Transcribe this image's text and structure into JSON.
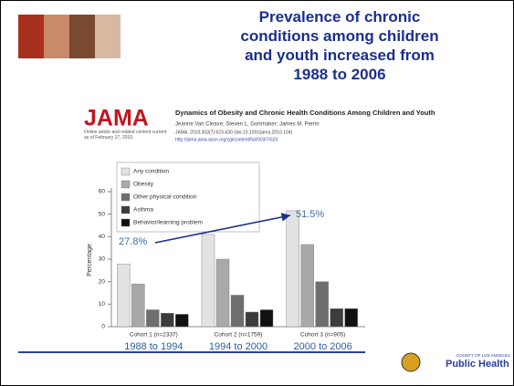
{
  "slide": {
    "title": "Prevalence of chronic conditions among children and youth increased from 1988 to 2006",
    "journal": "JAMA",
    "article_title": "Dynamics of Obesity and Chronic Health Conditions Among Children and Youth",
    "authors": "Jeanne Van Cleave; Steven L. Gortmaker; James M. Perrin",
    "citation": "JAMA. 2010;303(7):623-630 (doi:10.1001/jama.2010.104)",
    "url": "http://jama.ama-assn.org/cgi/content/full/303/7/623",
    "online_note": "Online article and related content current as of February 17, 2010.",
    "logo_small": "COUNTY OF LOS ANGELES",
    "logo_text": "Public Health"
  },
  "chart_data": {
    "type": "bar",
    "y_label": "Percentage",
    "categories": [
      "Cohort 1 (n=2337)",
      "Cohort 2 (n=1759)",
      "Cohort 3 (n=905)"
    ],
    "period_labels": [
      "1988 to 1994",
      "1994 to 2000",
      "2000 to 2006"
    ],
    "series": [
      {
        "name": "Any condition",
        "color": "#e2e2e2",
        "values": [
          27.8,
          41,
          51.5
        ]
      },
      {
        "name": "Obesity",
        "color": "#a9a9a9",
        "values": [
          19,
          30,
          36.5
        ]
      },
      {
        "name": "Other physical condition",
        "color": "#6e6e6e",
        "values": [
          7.5,
          14,
          20
        ]
      },
      {
        "name": "Asthma",
        "color": "#3c3c3c",
        "values": [
          6,
          6.5,
          8
        ]
      },
      {
        "name": "Behavior/learning problem",
        "color": "#111111",
        "values": [
          5.5,
          7.5,
          8
        ]
      }
    ],
    "ylim": [
      0,
      60
    ],
    "yticks": [
      0,
      10,
      20,
      30,
      40,
      50,
      60
    ],
    "legend": "upper-left",
    "annotations": [
      "27.8%",
      "51.5%"
    ]
  }
}
